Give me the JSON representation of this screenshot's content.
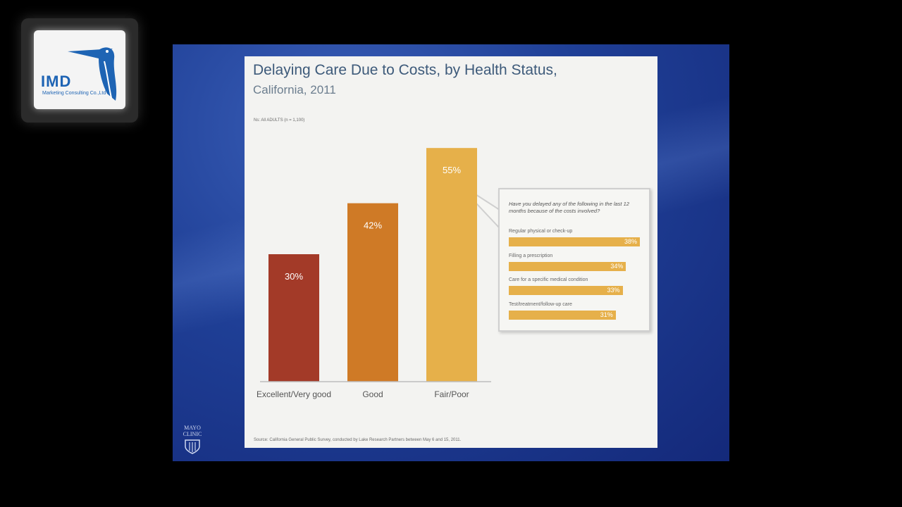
{
  "logo": {
    "name": "IMD",
    "tagline": "Marketing Consulting Co.,Ltd"
  },
  "slide": {
    "title": "Delaying Care Due to Costs, by Health Status,",
    "subtitle": "California, 2011",
    "note": "Ns: All ADULTS (n = 1,100)",
    "source": "Source: California General Public Survey, conducted by Lake Research Partners between May 6 and 15, 2011.",
    "footer_logo_lines": [
      "MAYO",
      "CLINIC"
    ]
  },
  "chart_data": {
    "type": "bar",
    "title": "Delaying Care Due to Costs, by Health Status, California, 2011",
    "xlabel": "",
    "ylabel": "",
    "ylim": [
      0,
      60
    ],
    "categories": [
      "Excellent/Very good",
      "Good",
      "Fair/Poor"
    ],
    "values": [
      30,
      42,
      55
    ],
    "value_labels": [
      "30%",
      "42%",
      "55%"
    ],
    "colors": [
      "#a33a28",
      "#cf7a26",
      "#e6b04a"
    ]
  },
  "callout": {
    "question": "Have you delayed any of the following in the last 12 months because of the costs involved?",
    "items": [
      {
        "label": "Regular physical or check-up",
        "value": 38,
        "value_label": "38%"
      },
      {
        "label": "Filling a prescription",
        "value": 34,
        "value_label": "34%"
      },
      {
        "label": "Care for a specific medical condition",
        "value": 33,
        "value_label": "33%"
      },
      {
        "label": "Test/treatment/follow-up care",
        "value": 31,
        "value_label": "31%"
      }
    ],
    "bar_color": "#e6b04a"
  }
}
